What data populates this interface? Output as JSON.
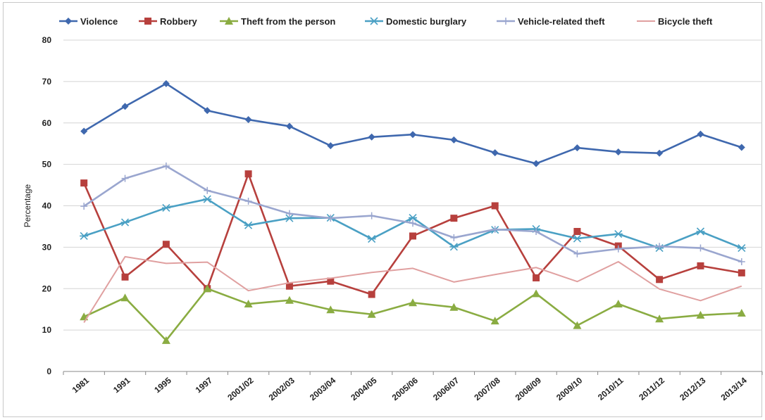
{
  "chart_data": {
    "type": "line",
    "title": "",
    "xlabel": "",
    "ylabel": "Percentage",
    "ylim": [
      0,
      80
    ],
    "yticks": [
      0,
      10,
      20,
      30,
      40,
      50,
      60,
      70,
      80
    ],
    "grid": "horizontal",
    "legend_position": "top",
    "categories": [
      "1981",
      "1991",
      "1995",
      "1997",
      "2001/02",
      "2002/03",
      "2003/04",
      "2004/05",
      "2005/06",
      "2006/07",
      "2007/08",
      "2008/09",
      "2009/10",
      "2010/11",
      "2011/12",
      "2012/13",
      "2013/14"
    ],
    "series": [
      {
        "name": "Violence",
        "color": "#3f68ae",
        "marker": "diamond",
        "values": [
          58,
          64,
          69.5,
          63,
          60.8,
          59.2,
          54.5,
          56.6,
          57.2,
          55.9,
          52.8,
          50.2,
          54,
          53,
          52.7,
          57.3,
          54.1
        ]
      },
      {
        "name": "Robbery",
        "color": "#b7403d",
        "marker": "square",
        "values": [
          45.5,
          22.8,
          30.7,
          20,
          47.7,
          20.6,
          21.8,
          18.6,
          32.7,
          37,
          40,
          22.6,
          33.8,
          30.3,
          22.2,
          25.5,
          23.8
        ]
      },
      {
        "name": "Theft from the person",
        "color": "#8aac42",
        "marker": "triangle",
        "values": [
          13.2,
          17.8,
          7.5,
          20,
          16.3,
          17.2,
          14.9,
          13.8,
          16.6,
          15.5,
          12.2,
          18.8,
          11.1,
          16.3,
          12.7,
          13.6,
          14.1
        ]
      },
      {
        "name": "Domestic burglary",
        "color": "#4aa0c4",
        "marker": "x",
        "values": [
          32.7,
          36,
          39.5,
          41.6,
          35.3,
          37,
          37.1,
          32,
          37.1,
          30.1,
          34.2,
          34.4,
          32.1,
          33.2,
          29.8,
          33.8,
          29.8
        ]
      },
      {
        "name": "Vehicle-related theft",
        "color": "#9aa6cf",
        "marker": "plus",
        "values": [
          39.9,
          46.6,
          49.6,
          43.7,
          41.1,
          38.1,
          37,
          37.6,
          35.8,
          32.3,
          34.3,
          33.8,
          28.4,
          29.6,
          30.2,
          29.8,
          26.5
        ]
      },
      {
        "name": "Bicycle theft",
        "color": "#e0a0a0",
        "marker": "none",
        "values": [
          11.8,
          27.7,
          26.1,
          26.4,
          19.5,
          21.4,
          22.5,
          23.9,
          24.9,
          21.6,
          23.4,
          25.1,
          21.7,
          26.5,
          19.9,
          17.1,
          20.6
        ]
      }
    ]
  }
}
